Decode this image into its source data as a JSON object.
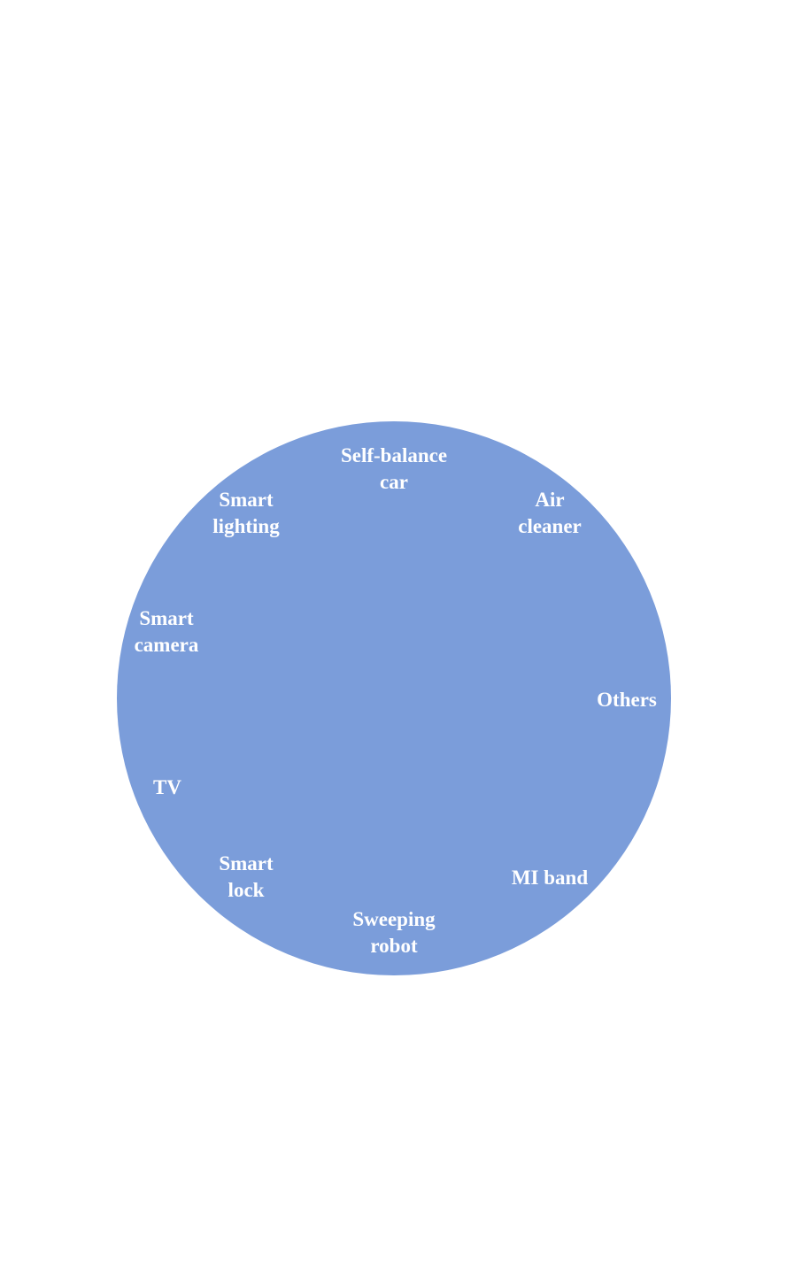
{
  "diagram": {
    "circle_color": "#7b9dda",
    "text_color": "#ffffff",
    "labels": [
      {
        "lines": [
          "Self-balance",
          "car"
        ]
      },
      {
        "lines": [
          "Air",
          "cleaner"
        ]
      },
      {
        "lines": [
          "Others"
        ]
      },
      {
        "lines": [
          "MI band"
        ]
      },
      {
        "lines": [
          "Sweeping",
          "robot"
        ]
      },
      {
        "lines": [
          "Smart",
          "lock"
        ]
      },
      {
        "lines": [
          "TV"
        ]
      },
      {
        "lines": [
          "Smart",
          "camera"
        ]
      },
      {
        "lines": [
          "Smart",
          "lighting"
        ]
      }
    ]
  }
}
